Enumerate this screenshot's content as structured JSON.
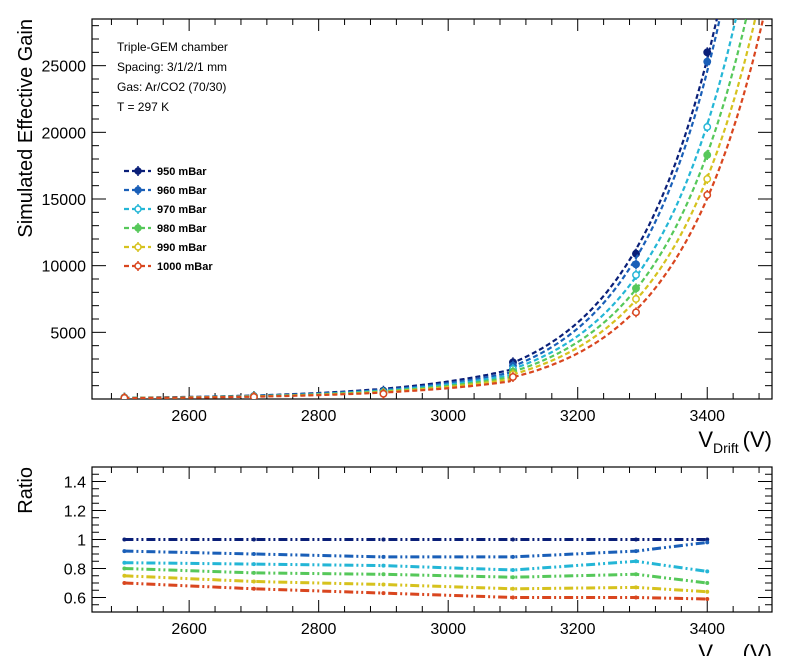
{
  "chart_data": [
    {
      "type": "line",
      "panel": "main",
      "ylabel": "Simulated Effective Gain",
      "xlabel": "V",
      "xlabel_sub": "Drift",
      "xlabel_unit": "(V)",
      "xlim": [
        2450,
        3500
      ],
      "ylim": [
        0,
        28500
      ],
      "xticks": [
        2600,
        2800,
        3000,
        3200,
        3400
      ],
      "yticks": [
        5000,
        10000,
        15000,
        20000,
        25000
      ],
      "x": [
        2500,
        2700,
        2900,
        3100,
        3290,
        3400
      ],
      "info_lines": [
        "Triple-GEM chamber",
        "Spacing: 3/1/2/1 mm",
        "Gas: Ar/CO2 (70/30)",
        "T = 297 K"
      ],
      "legend_position": "middle-left",
      "series": [
        {
          "name": "950 mBar",
          "color": "#0a1f78",
          "marker": "filled",
          "values": [
            110,
            220,
            620,
            2750,
            10900,
            26000
          ]
        },
        {
          "name": "960 mBar",
          "color": "#1a5fb8",
          "marker": "filled",
          "values": [
            100,
            200,
            560,
            2500,
            10100,
            25300
          ]
        },
        {
          "name": "970 mBar",
          "color": "#24b6d6",
          "marker": "open",
          "values": [
            90,
            190,
            510,
            2250,
            9300,
            20400
          ]
        },
        {
          "name": "980 mBar",
          "color": "#56c85a",
          "marker": "filled",
          "values": [
            85,
            175,
            470,
            2050,
            8300,
            18300
          ]
        },
        {
          "name": "990 mBar",
          "color": "#d6c21e",
          "marker": "open",
          "values": [
            80,
            165,
            430,
            1850,
            7500,
            16500
          ]
        },
        {
          "name": "1000 mBar",
          "color": "#d9461f",
          "marker": "open",
          "values": [
            75,
            150,
            390,
            1650,
            6500,
            15300
          ]
        }
      ]
    },
    {
      "type": "line",
      "panel": "ratio",
      "ylabel": "Ratio",
      "xlabel": "V",
      "xlabel_sub": "Drift",
      "xlabel_unit": "(V)",
      "xlim": [
        2450,
        3500
      ],
      "ylim": [
        0.5,
        1.5
      ],
      "xticks": [
        2600,
        2800,
        3000,
        3200,
        3400
      ],
      "yticks": [
        0.6,
        0.8,
        1,
        1.2,
        1.4
      ],
      "x": [
        2500,
        2700,
        2900,
        3100,
        3290,
        3400
      ],
      "series": [
        {
          "name": "950 mBar",
          "color": "#0a1f78",
          "values": [
            1.0,
            1.0,
            1.0,
            1.0,
            1.0,
            1.0
          ]
        },
        {
          "name": "960 mBar",
          "color": "#1a5fb8",
          "values": [
            0.92,
            0.9,
            0.88,
            0.88,
            0.92,
            0.98
          ]
        },
        {
          "name": "970 mBar",
          "color": "#24b6d6",
          "values": [
            0.84,
            0.83,
            0.82,
            0.79,
            0.85,
            0.78
          ]
        },
        {
          "name": "980 mBar",
          "color": "#56c85a",
          "values": [
            0.8,
            0.77,
            0.76,
            0.74,
            0.76,
            0.7
          ]
        },
        {
          "name": "990 mBar",
          "color": "#d6c21e",
          "values": [
            0.75,
            0.71,
            0.69,
            0.66,
            0.67,
            0.64
          ]
        },
        {
          "name": "1000 mBar",
          "color": "#d9461f",
          "values": [
            0.7,
            0.66,
            0.63,
            0.6,
            0.6,
            0.59
          ]
        }
      ]
    }
  ]
}
